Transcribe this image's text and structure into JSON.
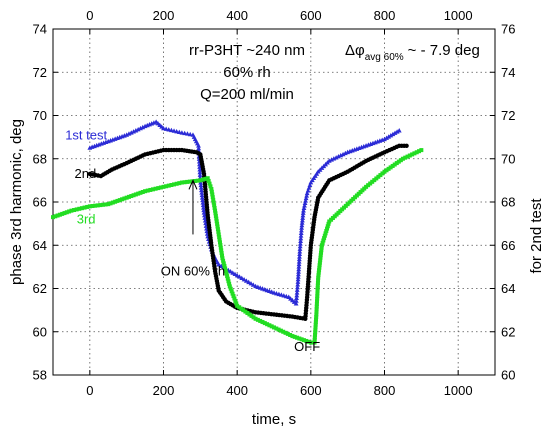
{
  "chart_data": {
    "type": "scatter",
    "title_lines": [
      "rr-P3HT ~240 nm",
      "60% rh",
      "Q=200 ml/min"
    ],
    "xlabel": "time, s",
    "ylabel": "phase 3rd harmonic, deg",
    "y2label": "for 2nd test",
    "xlim": [
      -100,
      1100
    ],
    "ylim": [
      58,
      74
    ],
    "y2lim": [
      60,
      76
    ],
    "x_ticks": [
      "0",
      "200",
      "400",
      "600",
      "800",
      "1000"
    ],
    "x_tick_values": [
      0,
      200,
      400,
      600,
      800,
      1000
    ],
    "y_ticks": [
      "58",
      "60",
      "62",
      "64",
      "66",
      "68",
      "70",
      "72",
      "74"
    ],
    "y_tick_values": [
      58,
      60,
      62,
      64,
      66,
      68,
      70,
      72,
      74
    ],
    "y2_ticks": [
      "60",
      "62",
      "64",
      "66",
      "68",
      "70",
      "72",
      "74",
      "76"
    ],
    "y2_tick_values": [
      60,
      62,
      64,
      66,
      68,
      70,
      72,
      74,
      76
    ],
    "grid": true,
    "delta_annotation": {
      "prefix": "Δφ",
      "subscript": "avg 60%",
      "suffix": "~ - 7.9 deg"
    },
    "annotations": [
      {
        "text": "ON 60% rh",
        "x": 280,
        "y": 62.6
      },
      {
        "text": "OFF",
        "x": 590,
        "y": 59.1
      }
    ],
    "arrow": {
      "x": 280,
      "y_from": 64.5,
      "y_to": 67.0
    },
    "series": [
      {
        "name": "1st test",
        "color": "#2b2bd6",
        "marker": "triangle",
        "label_at": [
          -10,
          68.9
        ],
        "x": [
          0,
          50,
          100,
          150,
          180,
          200,
          250,
          280,
          295,
          300,
          310,
          320,
          330,
          340,
          350,
          370,
          400,
          450,
          500,
          540,
          560,
          565,
          570,
          575,
          580,
          590,
          600,
          620,
          650,
          700,
          750,
          800,
          840
        ],
        "y": [
          68.5,
          68.8,
          69.1,
          69.5,
          69.7,
          69.4,
          69.2,
          69.1,
          68.6,
          67.0,
          65.5,
          64.4,
          63.8,
          63.4,
          63.1,
          62.9,
          62.6,
          62.1,
          61.8,
          61.6,
          61.3,
          62.3,
          63.7,
          64.8,
          65.6,
          66.4,
          66.9,
          67.4,
          67.9,
          68.3,
          68.6,
          68.9,
          69.3
        ]
      },
      {
        "name": "2nd",
        "color": "#000000",
        "marker": "circle",
        "label_at": [
          -12,
          67.1
        ],
        "x": [
          0,
          30,
          60,
          100,
          150,
          200,
          250,
          290,
          300,
          310,
          320,
          330,
          340,
          350,
          370,
          400,
          450,
          500,
          550,
          585,
          590,
          595,
          600,
          610,
          620,
          650,
          700,
          750,
          800,
          840,
          860
        ],
        "y": [
          67.3,
          67.2,
          67.5,
          67.8,
          68.2,
          68.4,
          68.4,
          68.3,
          68.2,
          67.3,
          65.4,
          64.0,
          62.8,
          61.9,
          61.4,
          61.1,
          60.9,
          60.8,
          60.7,
          60.6,
          61.6,
          62.8,
          64.0,
          65.3,
          66.2,
          67.0,
          67.4,
          67.9,
          68.3,
          68.6,
          68.6
        ]
      },
      {
        "name": "3rd",
        "color": "#22dd22",
        "marker": "square",
        "label_at": [
          -10,
          65.0
        ],
        "x": [
          -100,
          -50,
          0,
          50,
          100,
          150,
          200,
          250,
          300,
          320,
          330,
          340,
          350,
          360,
          380,
          400,
          450,
          500,
          550,
          600,
          610,
          615,
          620,
          630,
          650,
          700,
          750,
          800,
          850,
          900
        ],
        "y": [
          65.3,
          65.6,
          65.8,
          65.9,
          66.2,
          66.5,
          66.7,
          66.9,
          67.0,
          67.1,
          66.6,
          65.6,
          64.5,
          63.4,
          62.1,
          61.2,
          60.6,
          60.2,
          59.8,
          59.5,
          59.5,
          60.8,
          62.5,
          64.0,
          65.1,
          65.9,
          66.7,
          67.4,
          68.0,
          68.4
        ]
      }
    ]
  }
}
